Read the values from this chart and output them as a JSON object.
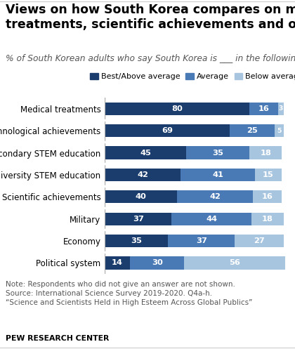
{
  "title_line1": "Views on how South Korea compares on medical",
  "title_line2": "treatments, scientific achievements and other areas",
  "subtitle": "% of South Korean adults who say South Korea is ___ in the following areas",
  "categories": [
    "Medical treatments",
    "Technological achievements",
    "Primary/secondary STEM education",
    "University STEM education",
    "Scientific achievements",
    "Military",
    "Economy",
    "Political system"
  ],
  "best_above": [
    80,
    69,
    45,
    42,
    40,
    37,
    35,
    14
  ],
  "average": [
    16,
    25,
    35,
    41,
    42,
    44,
    37,
    30
  ],
  "below_average": [
    3,
    5,
    18,
    15,
    16,
    18,
    27,
    56
  ],
  "color_best": "#1a3d6e",
  "color_avg": "#4a7ab5",
  "color_below": "#a8c5e0",
  "legend_labels": [
    "Best/Above average",
    "Average",
    "Below average"
  ],
  "note_line1": "Note: Respondents who did not give an answer are not shown.",
  "note_line2": "Source: International Science Survey 2019-2020. Q4a-h.",
  "note_line3": "“Science and Scientists Held in High Esteem Across Global Publics”",
  "footer": "PEW RESEARCH CENTER",
  "title_fontsize": 12.5,
  "subtitle_fontsize": 8.8,
  "label_fontsize": 8.5,
  "bar_fontsize": 8.2,
  "legend_fontsize": 8.0,
  "note_fontsize": 7.5,
  "footer_fontsize": 7.8
}
